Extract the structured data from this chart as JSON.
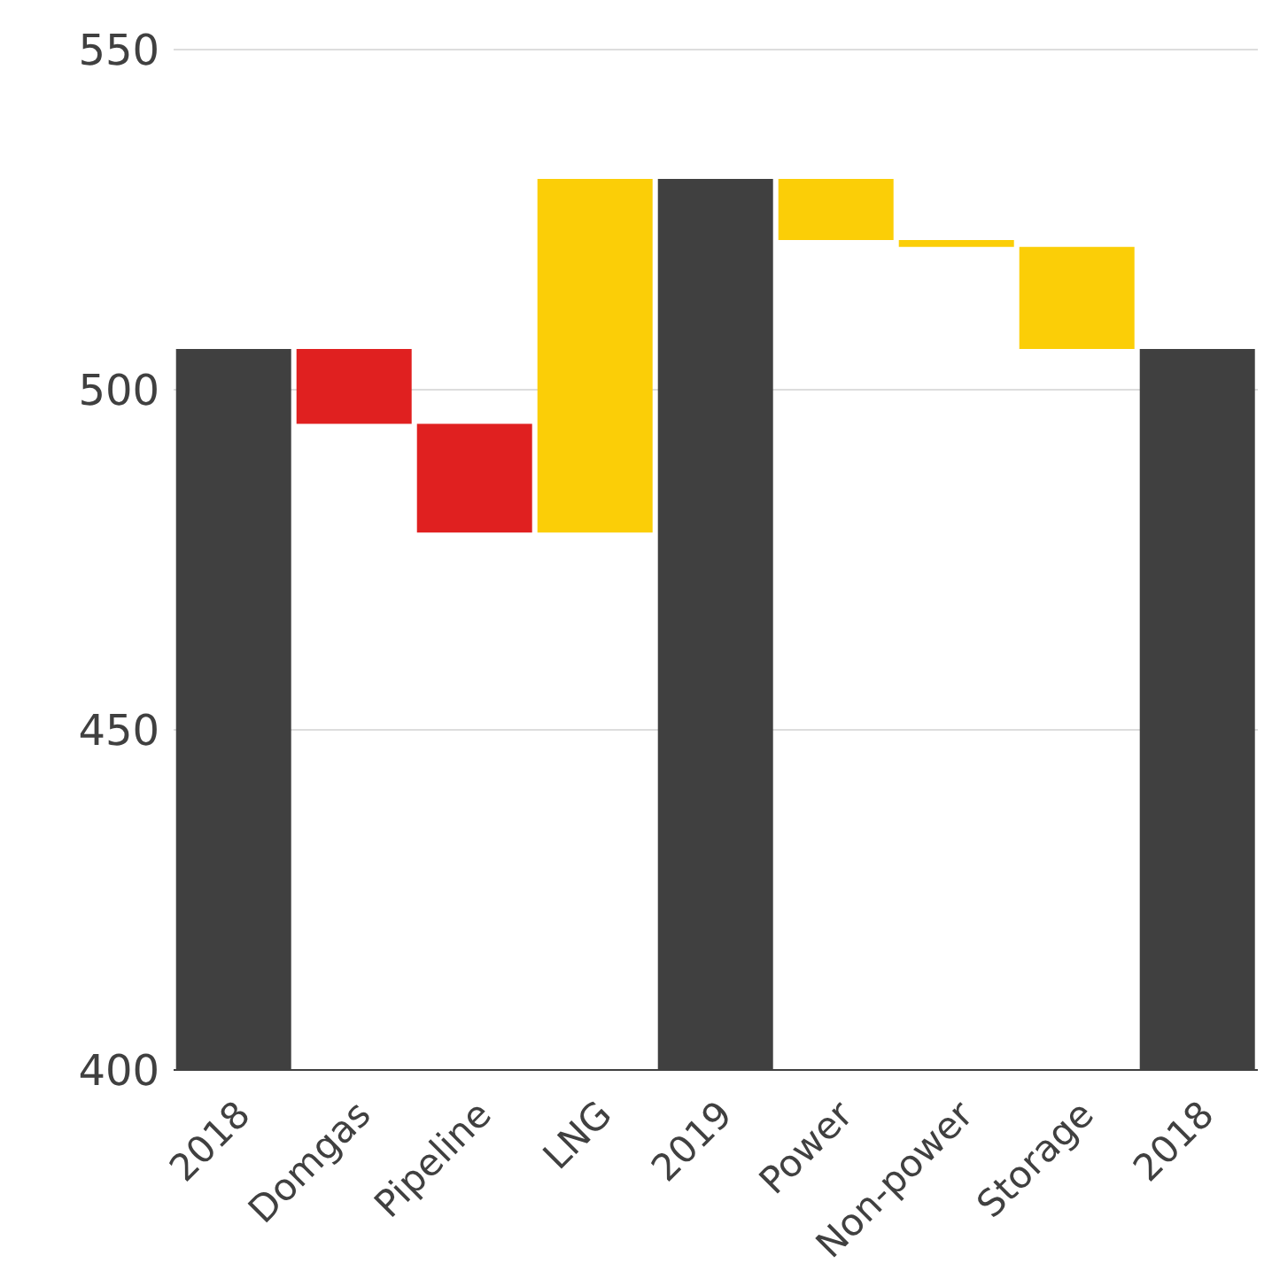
{
  "chart_data": {
    "type": "bar",
    "categories": [
      "2018",
      "Domgas",
      "Pipeline",
      "LNG",
      "2019",
      "Power",
      "Non-power",
      "Storage",
      "2018"
    ],
    "values": [
      506,
      -11,
      -16,
      52,
      531,
      -9,
      -1,
      -15,
      506
    ],
    "base": [
      null,
      506,
      495,
      479,
      null,
      531,
      522,
      521,
      null
    ],
    "colors": [
      "#404040",
      "#e02020",
      "#e02020",
      "#fbce07",
      "#404040",
      "#fbce07",
      "#fbce07",
      "#fbce07",
      "#404040"
    ],
    "ylim": [
      400,
      550
    ],
    "yticks": [
      400,
      450,
      500,
      550
    ],
    "grid": "y"
  }
}
